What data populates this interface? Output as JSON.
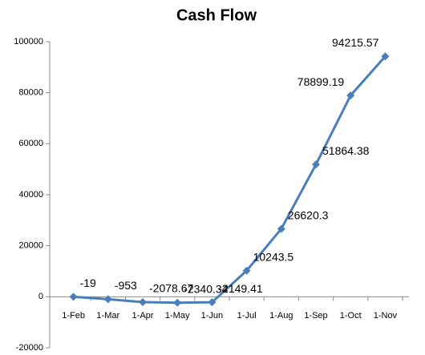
{
  "chart_data": {
    "type": "line",
    "title": "Cash Flow",
    "categories": [
      "1-Feb",
      "1-Mar",
      "1-Apr",
      "1-May",
      "1-Jun",
      "1-Jul",
      "1-Aug",
      "1-Sep",
      "1-Oct",
      "1-Nov"
    ],
    "values": [
      -19,
      -953,
      -2078.67,
      -2340.34,
      -2149.41,
      10243.5,
      26620.3,
      51864.38,
      78899.19,
      94215.57
    ],
    "color": "#4a7ebb",
    "ylim": [
      -20000,
      100000
    ],
    "yticks": [
      -20000,
      0,
      20000,
      40000,
      60000,
      80000,
      100000
    ],
    "grid": false
  }
}
